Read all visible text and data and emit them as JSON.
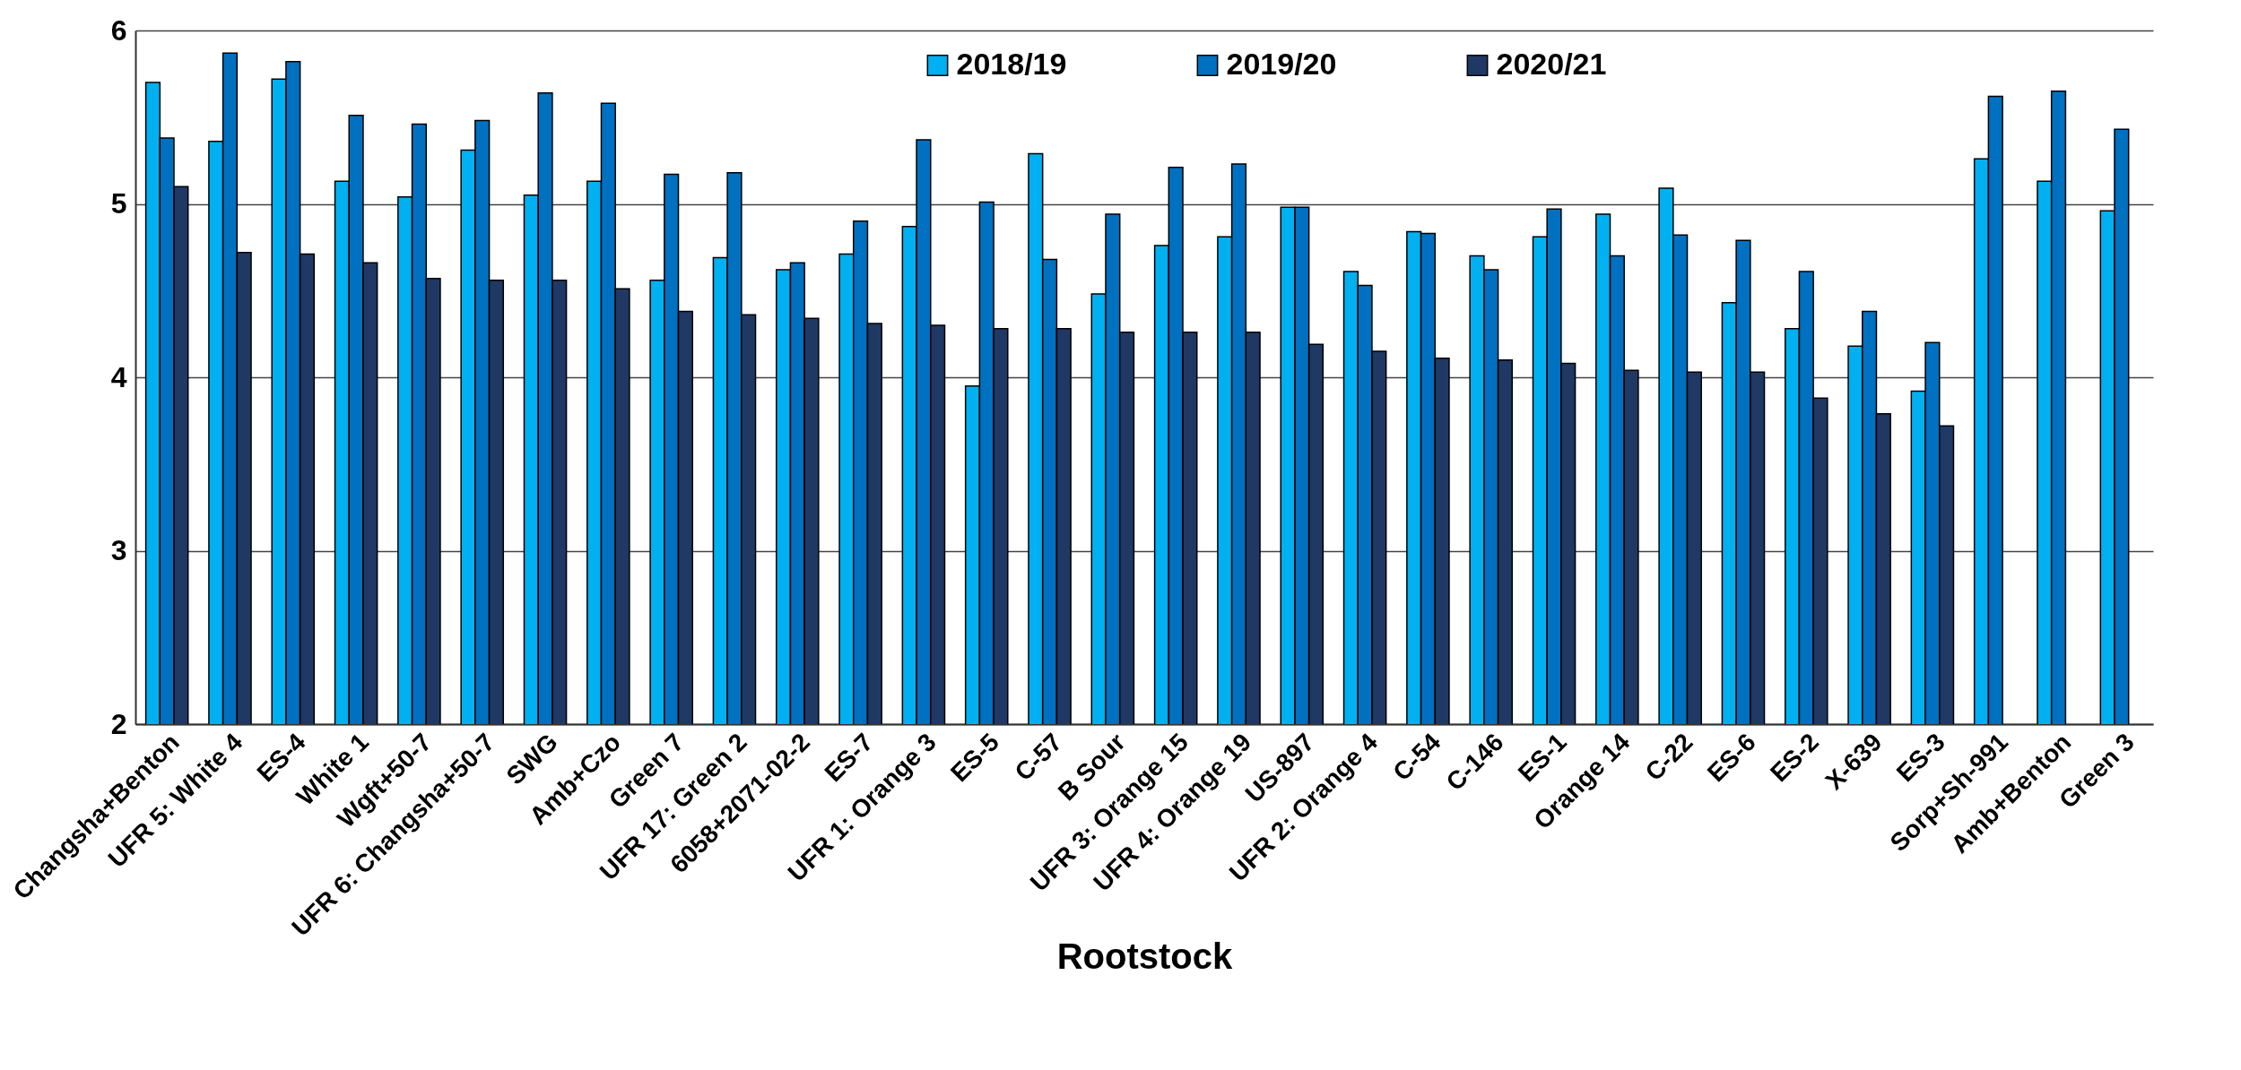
{
  "chart_data": {
    "type": "bar",
    "xlabel": "Rootstock",
    "categories": [
      "Changsha+Benton",
      "UFR 5: White 4",
      "ES-4",
      "White 1",
      "Wgft+50-7",
      "UFR 6: Changsha+50-7",
      "SWG",
      "Amb+Czo",
      "Green 7",
      "UFR 17: Green 2",
      "6058+2071-02-2",
      "ES-7",
      "UFR 1: Orange 3",
      "ES-5",
      "C-57",
      "B Sour",
      "UFR 3: Orange 15",
      "UFR 4: Orange 19",
      "US-897",
      "UFR 2: Orange 4",
      "C-54",
      "C-146",
      "ES-1",
      "Orange 14",
      "C-22",
      "ES-6",
      "ES-2",
      "X-639",
      "ES-3",
      "Sorp+Sh-991",
      "Amb+Benton",
      "Green 3"
    ],
    "series": [
      {
        "name": "2018/19",
        "color": "#00b0f0",
        "values": [
          5.7,
          5.36,
          5.72,
          5.13,
          5.04,
          5.31,
          5.05,
          5.13,
          4.56,
          4.69,
          4.62,
          4.71,
          4.87,
          3.95,
          5.29,
          4.48,
          4.76,
          4.81,
          4.98,
          4.61,
          4.84,
          4.7,
          4.81,
          4.94,
          5.09,
          4.43,
          4.28,
          4.18,
          3.92,
          5.26,
          5.13,
          4.96
        ]
      },
      {
        "name": "2019/20",
        "color": "#0070c0",
        "values": [
          5.38,
          5.87,
          5.82,
          5.51,
          5.46,
          5.48,
          5.64,
          5.58,
          5.17,
          5.18,
          4.66,
          4.9,
          5.37,
          5.01,
          4.68,
          4.94,
          5.21,
          5.23,
          4.98,
          4.53,
          4.83,
          4.62,
          4.97,
          4.7,
          4.82,
          4.79,
          4.61,
          4.38,
          4.2,
          5.62,
          5.65,
          5.43
        ]
      },
      {
        "name": "2020/21",
        "color": "#203864",
        "values": [
          5.1,
          4.72,
          4.71,
          4.66,
          4.57,
          4.56,
          4.56,
          4.51,
          4.38,
          4.36,
          4.34,
          4.31,
          4.3,
          4.28,
          4.28,
          4.26,
          4.26,
          4.26,
          4.19,
          4.15,
          4.11,
          4.1,
          4.08,
          4.04,
          4.03,
          4.03,
          3.88,
          3.79,
          3.72,
          null,
          null,
          null
        ]
      }
    ],
    "ylim": [
      2,
      6
    ],
    "yticks": [
      2,
      3,
      4,
      5,
      6
    ],
    "grid": "y",
    "legend": "top"
  }
}
